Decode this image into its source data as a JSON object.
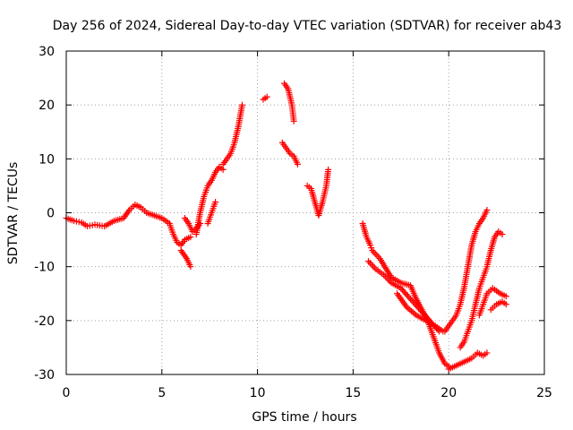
{
  "chart_data": {
    "type": "scatter",
    "title": "Day 256 of 2024, Sidereal Day-to-day VTEC variation (SDTVAR) for receiver ab43",
    "xlabel": "GPS time / hours",
    "ylabel": "SDTVAR / TECUs",
    "xlim": [
      0,
      25
    ],
    "ylim": [
      -30,
      30
    ],
    "xticks": [
      0,
      5,
      10,
      15,
      20,
      25
    ],
    "yticks": [
      -30,
      -20,
      -10,
      0,
      10,
      20,
      30
    ],
    "grid": true,
    "marker": "plus",
    "color": "#ff0000",
    "series": [
      {
        "name": "SDTVAR",
        "segments": [
          {
            "x": [
              0.0,
              0.4,
              0.8,
              1.1,
              1.5,
              2.0,
              2.5,
              3.0,
              3.3,
              3.6,
              3.9,
              4.2,
              4.6,
              5.0,
              5.4,
              5.6,
              5.8,
              6.0,
              6.2,
              6.5
            ],
            "y": [
              -1.0,
              -1.5,
              -1.8,
              -2.5,
              -2.2,
              -2.5,
              -1.5,
              -1.0,
              0.5,
              1.5,
              1.0,
              0.0,
              -0.5,
              -1.0,
              -2.0,
              -4.0,
              -5.5,
              -6.0,
              -5.0,
              -4.5
            ]
          },
          {
            "x": [
              6.0,
              6.3,
              6.5
            ],
            "y": [
              -7.0,
              -8.5,
              -10.0
            ]
          },
          {
            "x": [
              6.2,
              6.4,
              6.6,
              6.8,
              7.0
            ],
            "y": [
              -1.0,
              -2.0,
              -3.5,
              -3.0,
              -2.0
            ]
          },
          {
            "x": [
              6.8,
              7.0,
              7.2,
              7.4,
              7.6,
              7.8,
              8.0,
              8.2
            ],
            "y": [
              -4.0,
              0.0,
              3.0,
              5.0,
              6.0,
              7.5,
              8.5,
              8.0
            ]
          },
          {
            "x": [
              7.4,
              7.6,
              7.8
            ],
            "y": [
              -2.0,
              0.0,
              2.0
            ]
          },
          {
            "x": [
              8.2,
              8.4,
              8.6,
              8.8,
              9.0,
              9.2
            ],
            "y": [
              9.0,
              10.0,
              11.0,
              13.0,
              16.0,
              20.0
            ]
          },
          {
            "x": [
              10.3,
              10.5
            ],
            "y": [
              21.0,
              21.5
            ]
          },
          {
            "x": [
              11.4,
              11.6,
              11.8,
              11.9
            ],
            "y": [
              24.0,
              23.0,
              20.0,
              17.0
            ]
          },
          {
            "x": [
              11.3,
              11.5,
              11.7,
              11.9,
              12.1
            ],
            "y": [
              13.0,
              12.0,
              11.0,
              10.5,
              9.0
            ]
          },
          {
            "x": [
              12.6,
              12.8,
              13.0,
              13.2,
              13.4,
              13.6,
              13.7
            ],
            "y": [
              5.0,
              4.5,
              2.0,
              -0.5,
              2.0,
              5.0,
              8.0
            ]
          },
          {
            "x": [
              15.5,
              15.7,
              15.9,
              16.0,
              16.4,
              17.0,
              17.5,
              18.0,
              18.3,
              18.6,
              18.9,
              19.2,
              19.5,
              19.8,
              20.0
            ],
            "y": [
              -2.0,
              -4.5,
              -6.0,
              -7.0,
              -8.5,
              -12.0,
              -13.0,
              -13.5,
              -16.0,
              -18.0,
              -20.0,
              -23.0,
              -26.0,
              -28.0,
              -28.5
            ]
          },
          {
            "x": [
              15.8,
              16.2,
              16.6,
              17.0,
              17.5,
              18.0,
              18.5,
              19.0,
              19.5
            ],
            "y": [
              -9.0,
              -10.5,
              -11.5,
              -13.0,
              -14.0,
              -16.0,
              -18.0,
              -20.0,
              -22.0
            ]
          },
          {
            "x": [
              17.3,
              17.8,
              18.3,
              18.8,
              19.3,
              19.7
            ],
            "y": [
              -15.0,
              -17.5,
              -19.0,
              -20.0,
              -21.0,
              -22.0
            ]
          },
          {
            "x": [
              20.0,
              20.3,
              20.6,
              20.9,
              21.2,
              21.5,
              21.8,
              22.0
            ],
            "y": [
              -29.0,
              -28.5,
              -28.0,
              -27.5,
              -27.0,
              -26.0,
              -26.5,
              -26.0
            ]
          },
          {
            "x": [
              19.8,
              20.0,
              20.2,
              20.4,
              20.6,
              20.8,
              21.0,
              21.2,
              21.4,
              21.6,
              21.8,
              22.0
            ],
            "y": [
              -22.0,
              -21.0,
              -20.0,
              -19.0,
              -17.0,
              -14.0,
              -10.0,
              -6.0,
              -3.5,
              -2.0,
              -1.0,
              0.5
            ]
          },
          {
            "x": [
              20.6,
              20.8,
              21.0,
              21.2,
              21.4,
              21.6,
              21.8,
              22.0,
              22.2,
              22.4,
              22.6,
              22.8
            ],
            "y": [
              -25.0,
              -24.0,
              -22.0,
              -20.0,
              -17.0,
              -14.0,
              -12.0,
              -10.0,
              -7.0,
              -4.5,
              -3.5,
              -4.0
            ]
          },
          {
            "x": [
              21.6,
              21.8,
              22.0,
              22.3,
              22.5,
              22.7,
              23.0
            ],
            "y": [
              -19.0,
              -17.0,
              -15.0,
              -14.0,
              -14.5,
              -15.0,
              -15.5
            ]
          },
          {
            "x": [
              22.2,
              22.5,
              22.8,
              23.0
            ],
            "y": [
              -18.0,
              -17.0,
              -16.5,
              -17.0
            ]
          }
        ]
      }
    ]
  }
}
